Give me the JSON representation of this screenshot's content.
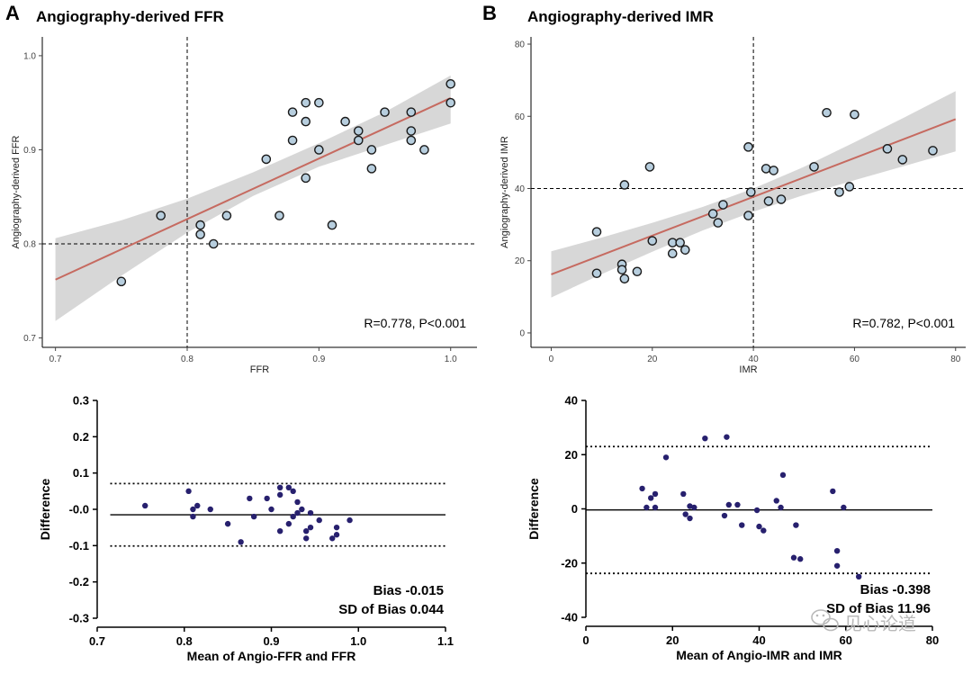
{
  "panels": {
    "a": {
      "letter": "A",
      "title": "Angiography-derived FFR"
    },
    "b": {
      "letter": "B",
      "title": "Angiography-derived IMR"
    }
  },
  "watermark": {
    "text": "见心论道",
    "icon": "wechat-icon"
  },
  "colors": {
    "scatter_point_fill": "#b7cede",
    "scatter_point_stroke": "#1a1a1a",
    "regression_line": "#c66a60",
    "confidence_band": "#d3d3d3",
    "ba_point": "#27206e"
  },
  "chart_data": [
    {
      "id": "ffr-scatter",
      "type": "scatter",
      "xlabel": "FFR",
      "ylabel": "Angiography-derived FFR",
      "xlim": [
        0.69,
        1.02
      ],
      "ylim": [
        0.69,
        1.02
      ],
      "xticks": [
        "0.7",
        "0.8",
        "0.9",
        "1.0"
      ],
      "yticks": [
        "0.7",
        "0.8",
        "0.9",
        "1.0"
      ],
      "ref_x": 0.8,
      "ref_y": 0.8,
      "fit": {
        "x": [
          0.7,
          1.0
        ],
        "y": [
          0.762,
          0.955
        ]
      },
      "band": {
        "x": [
          0.7,
          0.75,
          0.8,
          0.85,
          0.9,
          0.95,
          1.0
        ],
        "lo": [
          0.718,
          0.766,
          0.812,
          0.851,
          0.882,
          0.905,
          0.928
        ],
        "hi": [
          0.806,
          0.825,
          0.848,
          0.876,
          0.907,
          0.94,
          0.979
        ]
      },
      "stat_text": "R=0.778, P<0.001",
      "points": [
        [
          0.75,
          0.76
        ],
        [
          0.78,
          0.83
        ],
        [
          0.81,
          0.82
        ],
        [
          0.81,
          0.81
        ],
        [
          0.82,
          0.8
        ],
        [
          0.83,
          0.83
        ],
        [
          0.86,
          0.89
        ],
        [
          0.87,
          0.83
        ],
        [
          0.88,
          0.94
        ],
        [
          0.88,
          0.91
        ],
        [
          0.89,
          0.95
        ],
        [
          0.89,
          0.93
        ],
        [
          0.89,
          0.87
        ],
        [
          0.9,
          0.95
        ],
        [
          0.9,
          0.9
        ],
        [
          0.91,
          0.82
        ],
        [
          0.92,
          0.93
        ],
        [
          0.93,
          0.92
        ],
        [
          0.93,
          0.91
        ],
        [
          0.94,
          0.9
        ],
        [
          0.94,
          0.88
        ],
        [
          0.95,
          0.94
        ],
        [
          0.97,
          0.94
        ],
        [
          0.97,
          0.92
        ],
        [
          0.97,
          0.91
        ],
        [
          0.98,
          0.9
        ],
        [
          1.0,
          0.97
        ],
        [
          1.0,
          0.95
        ]
      ]
    },
    {
      "id": "imr-scatter",
      "type": "scatter",
      "xlabel": "IMR",
      "ylabel": "Angiography-derived IMR",
      "xlim": [
        -4,
        82
      ],
      "ylim": [
        -4,
        82
      ],
      "xticks": [
        "0",
        "20",
        "40",
        "60",
        "80"
      ],
      "yticks": [
        "0",
        "20",
        "40",
        "60",
        "80"
      ],
      "ref_x": 40,
      "ref_y": 40,
      "fit": {
        "x": [
          0,
          80
        ],
        "y": [
          16.2,
          59.2
        ]
      },
      "band": {
        "x": [
          0,
          10,
          20,
          30,
          40,
          50,
          60,
          70,
          80
        ],
        "lo": [
          9.8,
          16.3,
          22.5,
          28.4,
          33.6,
          38.2,
          42.3,
          46.3,
          50.3
        ],
        "hi": [
          22.6,
          26.4,
          30.5,
          34.9,
          40.0,
          46.0,
          52.8,
          59.8,
          67.0
        ]
      },
      "stat_text": "R=0.782, P<0.001",
      "points": [
        [
          9,
          28
        ],
        [
          9,
          16.5
        ],
        [
          14,
          19
        ],
        [
          14,
          17.5
        ],
        [
          14.5,
          15
        ],
        [
          14.5,
          41
        ],
        [
          17,
          17
        ],
        [
          19.5,
          46
        ],
        [
          20,
          25.5
        ],
        [
          24,
          25
        ],
        [
          24,
          22
        ],
        [
          25.5,
          25
        ],
        [
          26.5,
          23
        ],
        [
          32,
          33
        ],
        [
          33,
          30.5
        ],
        [
          34,
          35.5
        ],
        [
          39,
          32.5
        ],
        [
          39,
          51.5
        ],
        [
          39.5,
          39
        ],
        [
          42.5,
          45.5
        ],
        [
          43,
          36.5
        ],
        [
          44,
          45
        ],
        [
          45.5,
          37
        ],
        [
          52,
          46
        ],
        [
          54.5,
          61
        ],
        [
          57,
          39
        ],
        [
          59,
          40.5
        ],
        [
          60,
          60.5
        ],
        [
          66.5,
          51
        ],
        [
          69.5,
          48
        ],
        [
          75.5,
          50.5
        ]
      ]
    },
    {
      "id": "ffr-bland-altman",
      "type": "scatter",
      "xlabel": "Mean of Angio-FFR and FFR",
      "ylabel": "Difference",
      "xlim": [
        0.7,
        1.1
      ],
      "ylim": [
        -0.3,
        0.3
      ],
      "xticks": [
        "0.7",
        "0.8",
        "0.9",
        "1.0",
        "1.1"
      ],
      "yticks": [
        "0.3",
        "0.2",
        "0.1",
        "-0.0",
        "-0.1",
        "-0.2",
        "-0.3"
      ],
      "bias": -0.015,
      "upper_loa": 0.071,
      "lower_loa": -0.101,
      "xrange": [
        0.715,
        1.1
      ],
      "bias_text": "Bias -0.015",
      "sd_text": "SD of Bias 0.044",
      "points": [
        [
          0.755,
          0.01
        ],
        [
          0.805,
          0.05
        ],
        [
          0.81,
          0.0
        ],
        [
          0.81,
          -0.02
        ],
        [
          0.815,
          0.01
        ],
        [
          0.83,
          0.0
        ],
        [
          0.85,
          -0.04
        ],
        [
          0.865,
          -0.09
        ],
        [
          0.875,
          0.03
        ],
        [
          0.88,
          -0.02
        ],
        [
          0.895,
          0.03
        ],
        [
          0.9,
          0.0
        ],
        [
          0.91,
          0.06
        ],
        [
          0.91,
          0.04
        ],
        [
          0.91,
          -0.06
        ],
        [
          0.92,
          0.06
        ],
        [
          0.92,
          -0.04
        ],
        [
          0.925,
          -0.02
        ],
        [
          0.925,
          0.05
        ],
        [
          0.93,
          0.02
        ],
        [
          0.93,
          -0.01
        ],
        [
          0.935,
          0.0
        ],
        [
          0.94,
          -0.08
        ],
        [
          0.94,
          -0.06
        ],
        [
          0.945,
          -0.01
        ],
        [
          0.945,
          -0.05
        ],
        [
          0.955,
          -0.03
        ],
        [
          0.97,
          -0.08
        ],
        [
          0.975,
          -0.05
        ],
        [
          0.975,
          -0.07
        ],
        [
          0.99,
          -0.03
        ]
      ]
    },
    {
      "id": "imr-bland-altman",
      "type": "scatter",
      "xlabel": "Mean of  Angio-IMR and  IMR",
      "ylabel": "Difference",
      "xlim": [
        0,
        80
      ],
      "ylim": [
        -40,
        40
      ],
      "xticks": [
        "0",
        "20",
        "40",
        "60",
        "80"
      ],
      "yticks": [
        "40",
        "20",
        "0",
        "-20",
        "-40"
      ],
      "bias": -0.398,
      "upper_loa": 23.0,
      "lower_loa": -23.8,
      "xrange": [
        0,
        80
      ],
      "bias_text": "Bias -0.398",
      "sd_text": "SD of Bias 11.96",
      "points": [
        [
          13,
          7.5
        ],
        [
          14,
          0.5
        ],
        [
          15,
          4
        ],
        [
          16,
          5.5
        ],
        [
          16,
          0.5
        ],
        [
          18.5,
          19
        ],
        [
          22.5,
          5.5
        ],
        [
          23,
          -2
        ],
        [
          24,
          1
        ],
        [
          24,
          -3.5
        ],
        [
          25,
          0.5
        ],
        [
          27.5,
          26
        ],
        [
          32,
          -2.5
        ],
        [
          32.5,
          26.5
        ],
        [
          33,
          1.5
        ],
        [
          35,
          1.5
        ],
        [
          36,
          -6
        ],
        [
          39.5,
          -0.5
        ],
        [
          40,
          -6.5
        ],
        [
          41,
          -8
        ],
        [
          44,
          3
        ],
        [
          45,
          0.5
        ],
        [
          45.5,
          12.5
        ],
        [
          48,
          -18
        ],
        [
          48.5,
          -6
        ],
        [
          49.5,
          -18.5
        ],
        [
          57,
          6.5
        ],
        [
          58,
          -21
        ],
        [
          58,
          -15.5
        ],
        [
          59.5,
          0.5
        ],
        [
          63,
          -25
        ]
      ]
    }
  ]
}
